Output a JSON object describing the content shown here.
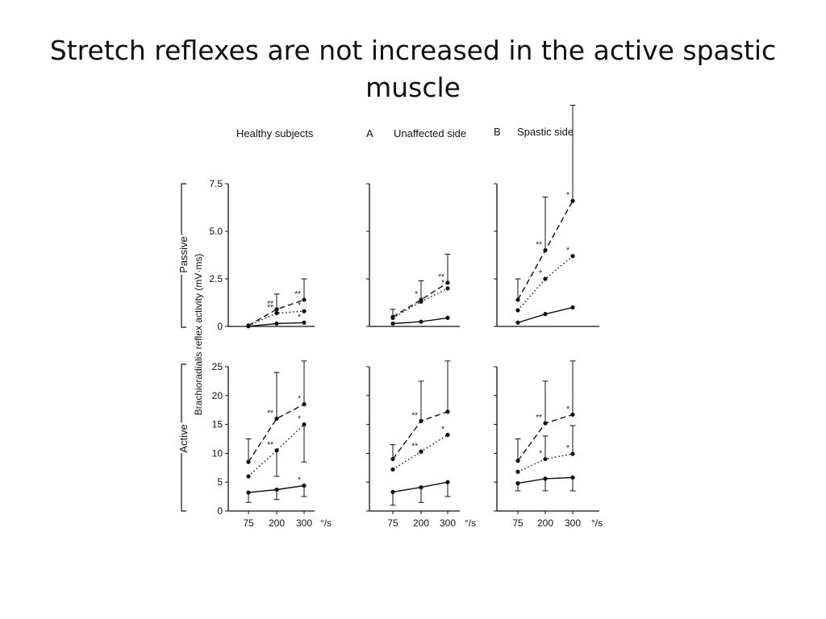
{
  "slide": {
    "title_line1": "Stretch reflexes are not increased in the active spastic",
    "title_line2": "muscle"
  },
  "colors": {
    "ink": "#111111",
    "background": "#ffffff"
  },
  "chart_data": {
    "type": "line",
    "ylabel": "Brachioradialis reflex activity (mV·ms)",
    "x_unit": "°/s",
    "x": [
      75,
      200,
      300
    ],
    "x_tick_labels": [
      "75",
      "200",
      "300"
    ],
    "row_labels": [
      "Passive",
      "Active"
    ],
    "columns": [
      {
        "letter": "",
        "title": "Healthy subjects"
      },
      {
        "letter": "A",
        "title": "Unaffected side"
      },
      {
        "letter": "B",
        "title": "Spastic side"
      }
    ],
    "series_styles": [
      "dashed",
      "dotted",
      "solid"
    ],
    "rows": [
      {
        "label": "Passive",
        "ylim": [
          0,
          75
        ],
        "yticks": [
          0,
          25,
          50,
          75
        ],
        "ytick_labels": [
          "0",
          "2.5",
          "5.0",
          "7.5"
        ],
        "panels": [
          {
            "column": "Healthy subjects",
            "series": [
              {
                "style": "dashed",
                "values": [
                  0.5,
                  9,
                  14
                ],
                "err": [
                  null,
                  17,
                  25
                ],
                "marks": [
                  "",
                  "**",
                  "**"
                ]
              },
              {
                "style": "dotted",
                "values": [
                  0.3,
                  7,
                  8
                ],
                "err": [
                  null,
                  null,
                  null
                ],
                "marks": [
                  "",
                  "**",
                  "*"
                ]
              },
              {
                "style": "solid",
                "values": [
                  0.1,
                  1.5,
                  2
                ],
                "err": [
                  null,
                  null,
                  null
                ],
                "marks": [
                  "",
                  "",
                  "*"
                ]
              }
            ]
          },
          {
            "column": "Unaffected side",
            "series": [
              {
                "style": "dashed",
                "values": [
                  5,
                  14,
                  23
                ],
                "err": [
                  9,
                  24,
                  38
                ],
                "marks": [
                  "",
                  "*",
                  "**"
                ]
              },
              {
                "style": "dotted",
                "values": [
                  4.5,
                  13,
                  20
                ],
                "err": [
                  null,
                  null,
                  null
                ],
                "marks": [
                  "",
                  "",
                  "*"
                ]
              },
              {
                "style": "solid",
                "values": [
                  1.5,
                  2.5,
                  4.5
                ],
                "err": [
                  null,
                  null,
                  null
                ],
                "marks": [
                  "",
                  "",
                  ""
                ]
              }
            ]
          },
          {
            "column": "Spastic side",
            "series": [
              {
                "style": "dashed",
                "values": [
                  14,
                  40,
                  66
                ],
                "err": [
                  25,
                  68,
                  118
                ],
                "marks": [
                  "",
                  "**",
                  "*"
                ]
              },
              {
                "style": "dotted",
                "values": [
                  8.5,
                  25,
                  37
                ],
                "err": [
                  null,
                  null,
                  null
                ],
                "marks": [
                  "",
                  "*",
                  "*"
                ]
              },
              {
                "style": "solid",
                "values": [
                  2,
                  6.5,
                  10
                ],
                "err": [
                  null,
                  null,
                  null
                ],
                "marks": [
                  "",
                  "",
                  ""
                ]
              }
            ]
          }
        ]
      },
      {
        "label": "Active",
        "ylim": [
          0,
          25
        ],
        "yticks": [
          0,
          5,
          10,
          15,
          20,
          25
        ],
        "ytick_labels": [
          "0",
          "5",
          "10",
          "15",
          "20",
          "25"
        ],
        "panels": [
          {
            "column": "Healthy subjects",
            "series": [
              {
                "style": "dashed",
                "values": [
                  8.5,
                  16,
                  18.5
                ],
                "err": [
                  12.5,
                  24,
                  26
                ],
                "marks": [
                  "",
                  "**",
                  "*"
                ]
              },
              {
                "style": "dotted",
                "values": [
                  6,
                  10.5,
                  15
                ],
                "err": [
                  null,
                  6,
                  8.5
                ],
                "marks": [
                  "",
                  "**",
                  "*"
                ]
              },
              {
                "style": "solid",
                "values": [
                  3.2,
                  3.7,
                  4.4
                ],
                "err": [
                  1.5,
                  2,
                  2.5
                ],
                "marks": [
                  "",
                  "",
                  "*"
                ]
              }
            ]
          },
          {
            "column": "Unaffected side",
            "series": [
              {
                "style": "dashed",
                "values": [
                  9,
                  15.6,
                  17.2
                ],
                "err": [
                  11.5,
                  22.5,
                  26
                ],
                "marks": [
                  "",
                  "**",
                  ""
                ]
              },
              {
                "style": "dotted",
                "values": [
                  7.2,
                  10.3,
                  13.2
                ],
                "err": [
                  null,
                  null,
                  null
                ],
                "marks": [
                  "",
                  "**",
                  "*"
                ]
              },
              {
                "style": "solid",
                "values": [
                  3.3,
                  4.1,
                  5
                ],
                "err": [
                  1,
                  1.5,
                  2.5
                ],
                "marks": [
                  "",
                  "",
                  ""
                ]
              }
            ]
          },
          {
            "column": "Spastic side",
            "series": [
              {
                "style": "dashed",
                "values": [
                  8.7,
                  15.2,
                  16.7
                ],
                "err": [
                  12.5,
                  22.5,
                  26
                ],
                "marks": [
                  "",
                  "**",
                  "*"
                ]
              },
              {
                "style": "dotted",
                "values": [
                  6.8,
                  9,
                  9.9
                ],
                "err": [
                  null,
                  13,
                  14.8
                ],
                "marks": [
                  "",
                  "*",
                  "*"
                ]
              },
              {
                "style": "solid",
                "values": [
                  4.8,
                  5.6,
                  5.8
                ],
                "err": [
                  3.5,
                  3.5,
                  3.5
                ],
                "marks": [
                  "",
                  "",
                  ""
                ]
              }
            ]
          }
        ]
      }
    ]
  }
}
